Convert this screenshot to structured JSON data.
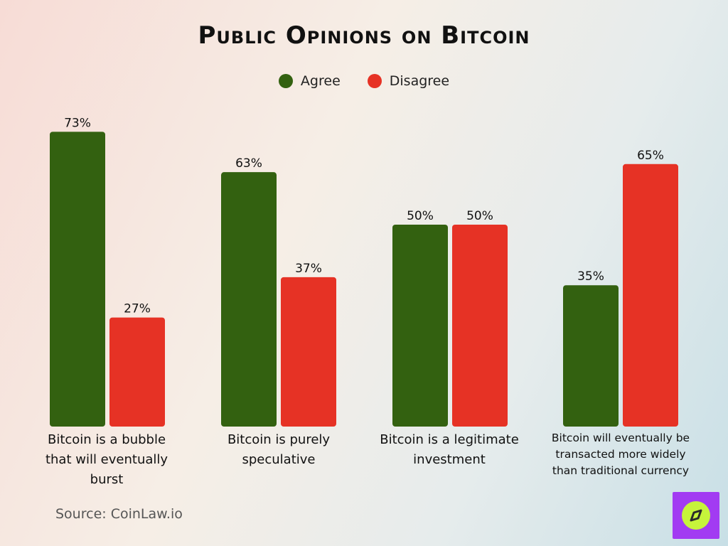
{
  "chart_data": {
    "type": "bar",
    "title": "Public Opinions on Bitcoin",
    "categories": [
      "Bitcoin is a bubble that will eventually burst",
      "Bitcoin is purely speculative",
      "Bitcoin is a legitimate investment",
      "Bitcoin will eventually be transacted more widely than traditional currency"
    ],
    "category_lines": [
      [
        "Bitcoin is a bubble",
        "that will eventually",
        "burst"
      ],
      [
        "Bitcoin is purely",
        "speculative"
      ],
      [
        "Bitcoin is a legitimate",
        "investment"
      ],
      [
        "Bitcoin will eventually be",
        "transacted more widely",
        "than traditional currency"
      ]
    ],
    "series": [
      {
        "name": "Agree",
        "color": "#336110",
        "values": [
          73,
          63,
          50,
          35
        ]
      },
      {
        "name": "Disagree",
        "color": "#e63225",
        "values": [
          27,
          37,
          50,
          65
        ]
      }
    ],
    "value_suffix": "%",
    "ylim": [
      0,
      100
    ],
    "legend_position": "top-center",
    "grid": false,
    "source": "Source: CoinLaw.io"
  }
}
